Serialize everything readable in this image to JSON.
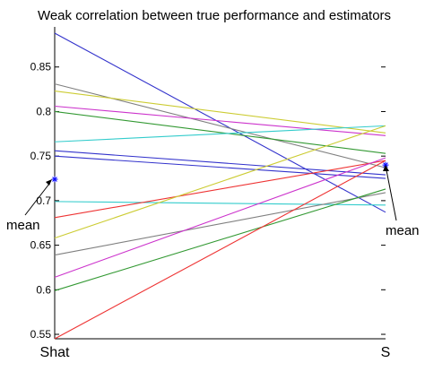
{
  "chart_data": {
    "type": "line",
    "title": "Weak correlation between true performance and estimators",
    "categories": [
      "Shat",
      "S"
    ],
    "ylim": [
      0.545,
      0.895
    ],
    "yticks": [
      0.55,
      0.6,
      0.65,
      0.7,
      0.75,
      0.8,
      0.85
    ],
    "ytick_labels": [
      "0.55",
      "0.6",
      "0.65",
      "0.7",
      "0.75",
      "0.8",
      "0.85"
    ],
    "grid": false,
    "series": [
      {
        "color": "#3333cc",
        "values": [
          0.888,
          0.687
        ]
      },
      {
        "color": "#808080",
        "values": [
          0.831,
          0.737
        ]
      },
      {
        "color": "#cccc33",
        "values": [
          0.823,
          0.776
        ]
      },
      {
        "color": "#cc33cc",
        "values": [
          0.806,
          0.773
        ]
      },
      {
        "color": "#339933",
        "values": [
          0.8,
          0.753
        ]
      },
      {
        "color": "#33cccc",
        "values": [
          0.766,
          0.784
        ]
      },
      {
        "color": "#3333cc",
        "values": [
          0.756,
          0.729
        ]
      },
      {
        "color": "#3333cc",
        "values": [
          0.75,
          0.725
        ]
      },
      {
        "color": "#33cccc",
        "values": [
          0.699,
          0.695
        ]
      },
      {
        "color": "#ee3333",
        "values": [
          0.681,
          0.745
        ]
      },
      {
        "color": "#cccc33",
        "values": [
          0.658,
          0.784
        ]
      },
      {
        "color": "#808080",
        "values": [
          0.639,
          0.709
        ]
      },
      {
        "color": "#cc33cc",
        "values": [
          0.614,
          0.748
        ]
      },
      {
        "color": "#339933",
        "values": [
          0.599,
          0.713
        ]
      },
      {
        "color": "#ee3333",
        "values": [
          0.545,
          0.745
        ]
      }
    ],
    "mean_points": [
      {
        "category": "Shat",
        "value": 0.724,
        "marker": "*",
        "color": "#0000ff"
      },
      {
        "category": "S",
        "value": 0.74,
        "marker": "*",
        "color": "#0000ff"
      }
    ],
    "annotations": [
      {
        "text": "mean",
        "target": "Shat"
      },
      {
        "text": "mean",
        "target": "S"
      }
    ]
  }
}
